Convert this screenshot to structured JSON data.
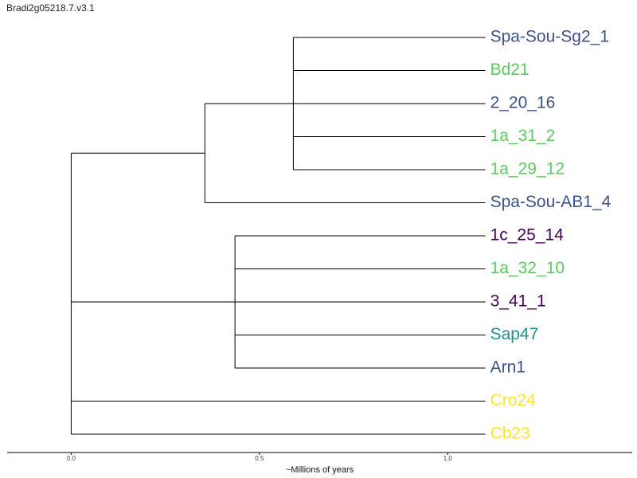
{
  "title": "Bradi2g05218.7.v3.1",
  "chart_data": {
    "type": "dendrogram",
    "xlabel": "~Millions of years",
    "xticks": [
      0.0,
      0.5,
      1.0
    ],
    "xtick_labels": [
      "0.0",
      "0.5",
      "1.0"
    ],
    "xlim": [
      -0.17,
      1.49
    ],
    "leaf_x": 1.1,
    "grid": false,
    "leaves": [
      {
        "label": "Spa-Sou-Sg2_1",
        "color": "#3b528b"
      },
      {
        "label": "Bd21",
        "color": "#5ec962"
      },
      {
        "label": "2_20_16",
        "color": "#3b528b"
      },
      {
        "label": "1a_31_2",
        "color": "#5ec962"
      },
      {
        "label": "1a_29_12",
        "color": "#5ec962"
      },
      {
        "label": "Spa-Sou-AB1_4",
        "color": "#3b528b"
      },
      {
        "label": "1c_25_14",
        "color": "#440154"
      },
      {
        "label": "1a_32_10",
        "color": "#5ec962"
      },
      {
        "label": "3_41_1",
        "color": "#440154"
      },
      {
        "label": "Sap47",
        "color": "#21918c"
      },
      {
        "label": "Arn1",
        "color": "#3b528b"
      },
      {
        "label": "Cro24",
        "color": "#fde725"
      },
      {
        "label": "Cb23",
        "color": "#fde725"
      }
    ],
    "nodes": [
      {
        "id": "n1",
        "x": 0.59,
        "children": [
          0,
          1,
          2,
          3,
          4
        ]
      },
      {
        "id": "n2",
        "x": 0.355,
        "children": [
          "n1",
          5
        ]
      },
      {
        "id": "n3",
        "x": 0.435,
        "children": [
          6,
          7,
          8,
          9,
          10
        ]
      },
      {
        "id": "n4",
        "x": 0.0,
        "children": [
          "n2",
          "n3",
          11,
          12
        ]
      }
    ]
  }
}
